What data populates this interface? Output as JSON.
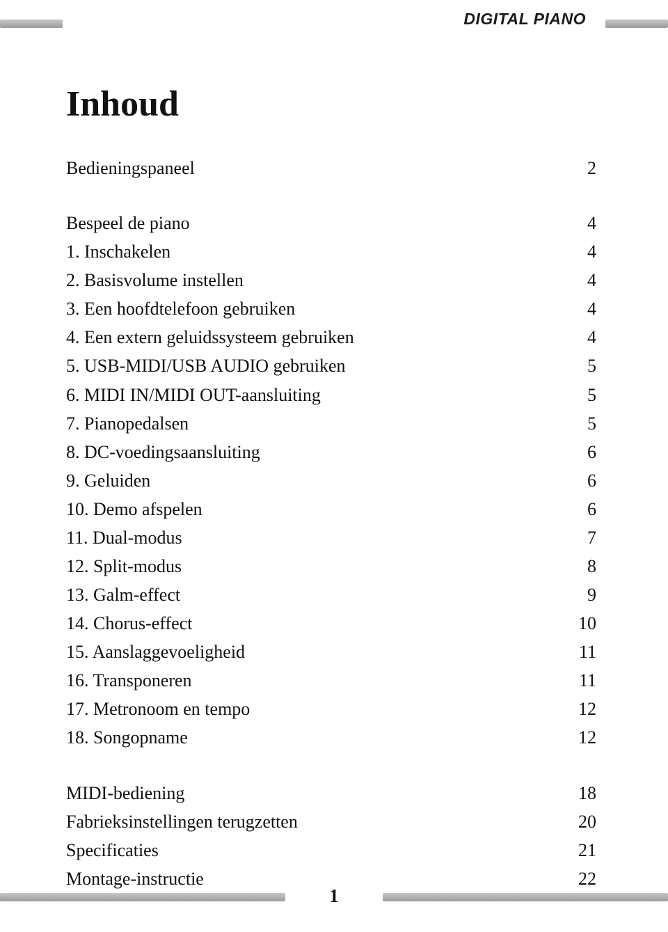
{
  "header": {
    "brand": "DIGITAL PIANO"
  },
  "title": "Inhoud",
  "toc": [
    {
      "label": "Bedieningspaneel",
      "page": "2"
    },
    {
      "gap": true
    },
    {
      "label": "Bespeel de piano",
      "page": "4"
    },
    {
      "label": "1. Inschakelen",
      "page": "4"
    },
    {
      "label": "2. Basisvolume instellen",
      "page": "4"
    },
    {
      "label": "3. Een hoofdtelefoon gebruiken",
      "page": "4"
    },
    {
      "label": "4. Een extern geluidssysteem gebruiken",
      "page": "4"
    },
    {
      "label": "5. USB-MIDI/USB AUDIO gebruiken",
      "page": "5"
    },
    {
      "label": "6. MIDI IN/MIDI OUT-aansluiting",
      "page": "5"
    },
    {
      "label": "7. Pianopedalsen",
      "page": "5"
    },
    {
      "label": "8. DC-voedingsaansluiting",
      "page": "6"
    },
    {
      "label": "9. Geluiden",
      "page": "6"
    },
    {
      "label": "10. Demo afspelen",
      "page": "6"
    },
    {
      "label": "11. Dual-modus",
      "page": "7"
    },
    {
      "label": "12. Split-modus",
      "page": "8"
    },
    {
      "label": "13. Galm-effect",
      "page": "9"
    },
    {
      "label": "14. Chorus-effect",
      "page": "10"
    },
    {
      "label": "15. Aanslaggevoeligheid",
      "page": "11"
    },
    {
      "label": "16. Transponeren",
      "page": "11"
    },
    {
      "label": "17. Metronoom en tempo",
      "page": "12"
    },
    {
      "label": "18. Songopname",
      "page": "12"
    },
    {
      "gap": true
    },
    {
      "label": "MIDI-bediening",
      "page": "18"
    },
    {
      "label": "Fabrieksinstellingen terugzetten",
      "page": "20"
    },
    {
      "label": "Specificaties",
      "page": "21"
    },
    {
      "label": "Montage-instructie",
      "page": "22"
    }
  ],
  "footer": {
    "page_number": "1"
  },
  "colors": {
    "background": "#ffffff",
    "text": "#111111",
    "bar_light": "#c8c8c8",
    "bar_dark": "#9a9a9a"
  },
  "typography": {
    "body_font": "Times New Roman",
    "header_font": "Arial",
    "title_size_pt": 39,
    "body_size_pt": 20
  }
}
